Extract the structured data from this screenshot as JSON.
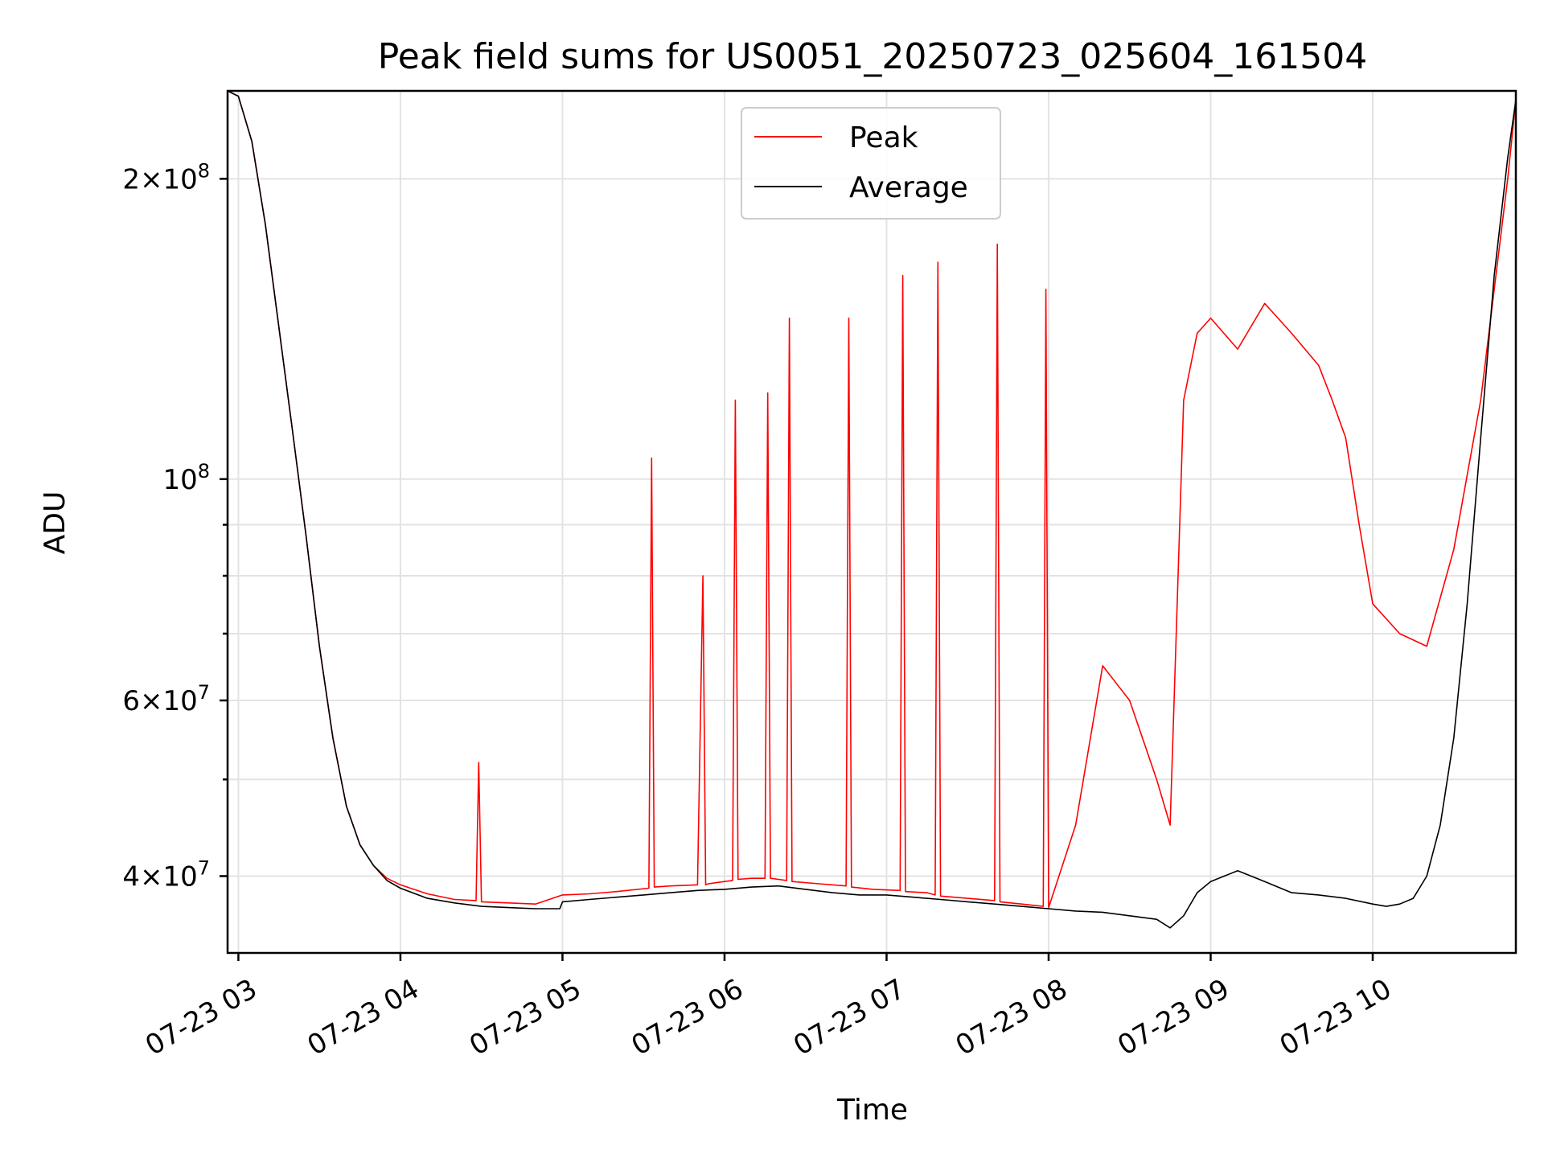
{
  "chart_data": {
    "type": "line",
    "title": "Peak field sums for US0051_20250723_025604_161504",
    "xlabel": "Time",
    "ylabel": "ADU",
    "yscale": "log",
    "ylim": [
      33500000,
      245000000
    ],
    "xlim": [
      "2025-07-23 02:56",
      "2025-07-23 10:53"
    ],
    "x_ticks": [
      {
        "t": "2025-07-23 03:00",
        "label": "07-23 03"
      },
      {
        "t": "2025-07-23 04:00",
        "label": "07-23 04"
      },
      {
        "t": "2025-07-23 05:00",
        "label": "07-23 05"
      },
      {
        "t": "2025-07-23 06:00",
        "label": "07-23 06"
      },
      {
        "t": "2025-07-23 07:00",
        "label": "07-23 07"
      },
      {
        "t": "2025-07-23 08:00",
        "label": "07-23 08"
      },
      {
        "t": "2025-07-23 09:00",
        "label": "07-23 09"
      },
      {
        "t": "2025-07-23 10:00",
        "label": "07-23 10"
      }
    ],
    "y_ticks": [
      {
        "value": 40000000,
        "base": "4",
        "exp": "7"
      },
      {
        "value": 60000000,
        "base": "6",
        "exp": "7"
      },
      {
        "value": 100000000,
        "base": "",
        "exp": "8"
      },
      {
        "value": 200000000,
        "base": "2",
        "exp": "8"
      }
    ],
    "y_minor_ticks": [
      50000000,
      70000000,
      80000000,
      90000000
    ],
    "grid": true,
    "legend_position": "upper-center",
    "series": [
      {
        "name": "Peak",
        "color": "#ff0000",
        "x": [
          "2025-07-23 02:56",
          "2025-07-23 03:00",
          "2025-07-23 03:05",
          "2025-07-23 03:10",
          "2025-07-23 03:15",
          "2025-07-23 03:20",
          "2025-07-23 03:25",
          "2025-07-23 03:30",
          "2025-07-23 03:35",
          "2025-07-23 03:40",
          "2025-07-23 03:45",
          "2025-07-23 03:50",
          "2025-07-23 03:55",
          "2025-07-23 04:00",
          "2025-07-23 04:10",
          "2025-07-23 04:20",
          "2025-07-23 04:28",
          "2025-07-23 04:29",
          "2025-07-23 04:30",
          "2025-07-23 04:40",
          "2025-07-23 04:50",
          "2025-07-23 05:00",
          "2025-07-23 05:10",
          "2025-07-23 05:20",
          "2025-07-23 05:32",
          "2025-07-23 05:33",
          "2025-07-23 05:34",
          "2025-07-23 05:40",
          "2025-07-23 05:50",
          "2025-07-23 05:52",
          "2025-07-23 05:53",
          "2025-07-23 05:54",
          "2025-07-23 06:00",
          "2025-07-23 06:03",
          "2025-07-23 06:04",
          "2025-07-23 06:05",
          "2025-07-23 06:10",
          "2025-07-23 06:15",
          "2025-07-23 06:16",
          "2025-07-23 06:17",
          "2025-07-23 06:20",
          "2025-07-23 06:23",
          "2025-07-23 06:24",
          "2025-07-23 06:25",
          "2025-07-23 06:35",
          "2025-07-23 06:45",
          "2025-07-23 06:46",
          "2025-07-23 06:47",
          "2025-07-23 06:55",
          "2025-07-23 07:05",
          "2025-07-23 07:06",
          "2025-07-23 07:07",
          "2025-07-23 07:15",
          "2025-07-23 07:18",
          "2025-07-23 07:19",
          "2025-07-23 07:20",
          "2025-07-23 07:30",
          "2025-07-23 07:40",
          "2025-07-23 07:41",
          "2025-07-23 07:42",
          "2025-07-23 07:50",
          "2025-07-23 07:58",
          "2025-07-23 07:59",
          "2025-07-23 08:00",
          "2025-07-23 08:10",
          "2025-07-23 08:20",
          "2025-07-23 08:30",
          "2025-07-23 08:40",
          "2025-07-23 08:45",
          "2025-07-23 08:50",
          "2025-07-23 08:55",
          "2025-07-23 09:00",
          "2025-07-23 09:10",
          "2025-07-23 09:20",
          "2025-07-23 09:30",
          "2025-07-23 09:40",
          "2025-07-23 09:45",
          "2025-07-23 09:50",
          "2025-07-23 09:55",
          "2025-07-23 10:00",
          "2025-07-23 10:10",
          "2025-07-23 10:20",
          "2025-07-23 10:30",
          "2025-07-23 10:40",
          "2025-07-23 10:50",
          "2025-07-23 10:53"
        ],
        "y": [
          245000000,
          242000000,
          218000000,
          180000000,
          142000000,
          112000000,
          88000000,
          68000000,
          55000000,
          47000000,
          43000000,
          41000000,
          39800000,
          39200000,
          38400000,
          37900000,
          37800000,
          52000000,
          37700000,
          37600000,
          37500000,
          38300000,
          38400000,
          38600000,
          38900000,
          105000000,
          39000000,
          39100000,
          39200000,
          80000000,
          39200000,
          39300000,
          39500000,
          39600000,
          120000000,
          39700000,
          39800000,
          39800000,
          122000000,
          39800000,
          39700000,
          39600000,
          145000000,
          39500000,
          39300000,
          39100000,
          145000000,
          39000000,
          38800000,
          38700000,
          160000000,
          38600000,
          38500000,
          38300000,
          165000000,
          38200000,
          38000000,
          37800000,
          172000000,
          37700000,
          37500000,
          37300000,
          155000000,
          37200000,
          45000000,
          65000000,
          60000000,
          50000000,
          45000000,
          120000000,
          140000000,
          145000000,
          135000000,
          150000000,
          140000000,
          130000000,
          120000000,
          110000000,
          90000000,
          75000000,
          70000000,
          68000000,
          85000000,
          120000000,
          200000000,
          240000000
        ]
      },
      {
        "name": "Average",
        "color": "#000000",
        "x": [
          "2025-07-23 02:56",
          "2025-07-23 03:00",
          "2025-07-23 03:05",
          "2025-07-23 03:10",
          "2025-07-23 03:15",
          "2025-07-23 03:20",
          "2025-07-23 03:25",
          "2025-07-23 03:30",
          "2025-07-23 03:35",
          "2025-07-23 03:40",
          "2025-07-23 03:45",
          "2025-07-23 03:50",
          "2025-07-23 03:55",
          "2025-07-23 04:00",
          "2025-07-23 04:10",
          "2025-07-23 04:20",
          "2025-07-23 04:30",
          "2025-07-23 04:40",
          "2025-07-23 04:50",
          "2025-07-23 04:59",
          "2025-07-23 05:00",
          "2025-07-23 05:10",
          "2025-07-23 05:20",
          "2025-07-23 05:30",
          "2025-07-23 05:40",
          "2025-07-23 05:50",
          "2025-07-23 06:00",
          "2025-07-23 06:10",
          "2025-07-23 06:20",
          "2025-07-23 06:30",
          "2025-07-23 06:40",
          "2025-07-23 06:50",
          "2025-07-23 07:00",
          "2025-07-23 07:10",
          "2025-07-23 07:20",
          "2025-07-23 07:30",
          "2025-07-23 07:40",
          "2025-07-23 07:50",
          "2025-07-23 08:00",
          "2025-07-23 08:10",
          "2025-07-23 08:20",
          "2025-07-23 08:30",
          "2025-07-23 08:40",
          "2025-07-23 08:45",
          "2025-07-23 08:50",
          "2025-07-23 08:55",
          "2025-07-23 09:00",
          "2025-07-23 09:10",
          "2025-07-23 09:20",
          "2025-07-23 09:30",
          "2025-07-23 09:40",
          "2025-07-23 09:50",
          "2025-07-23 10:00",
          "2025-07-23 10:05",
          "2025-07-23 10:10",
          "2025-07-23 10:15",
          "2025-07-23 10:20",
          "2025-07-23 10:25",
          "2025-07-23 10:30",
          "2025-07-23 10:35",
          "2025-07-23 10:40",
          "2025-07-23 10:45",
          "2025-07-23 10:50",
          "2025-07-23 10:53"
        ],
        "y": [
          245000000,
          242000000,
          218000000,
          180000000,
          142000000,
          112000000,
          88000000,
          68000000,
          55000000,
          47000000,
          43000000,
          41000000,
          39600000,
          38900000,
          38000000,
          37600000,
          37300000,
          37200000,
          37100000,
          37100000,
          37700000,
          37900000,
          38100000,
          38300000,
          38500000,
          38700000,
          38800000,
          39000000,
          39100000,
          38800000,
          38500000,
          38300000,
          38300000,
          38100000,
          37900000,
          37700000,
          37500000,
          37300000,
          37100000,
          36900000,
          36800000,
          36500000,
          36200000,
          35500000,
          36500000,
          38500000,
          39500000,
          40500000,
          39500000,
          38500000,
          38300000,
          38000000,
          37500000,
          37300000,
          37500000,
          38000000,
          40000000,
          45000000,
          55000000,
          75000000,
          110000000,
          160000000,
          210000000,
          240000000
        ]
      }
    ]
  }
}
